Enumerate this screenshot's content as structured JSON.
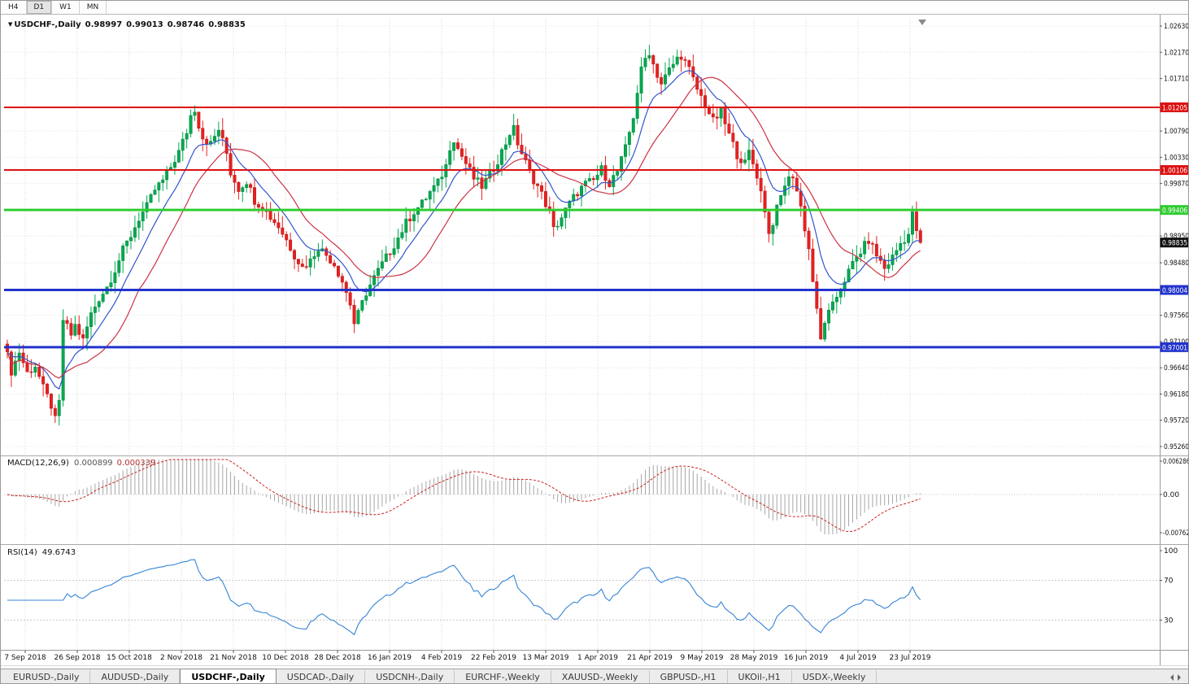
{
  "toolbar": {
    "timeframes": [
      {
        "label": "H4",
        "active": false
      },
      {
        "label": "D1",
        "active": true
      },
      {
        "label": "W1",
        "active": false
      },
      {
        "label": "MN",
        "active": false
      }
    ]
  },
  "chart": {
    "collapse_icon": "▼",
    "symbol_period": "USDCHF-,Daily",
    "ohlc": {
      "open": "0.98997",
      "high": "0.99013",
      "low": "0.98746",
      "close": "0.98835"
    },
    "price_axis": {
      "max": 1.0263,
      "min": 0.9526,
      "labels": [
        "1.02630",
        "1.02170",
        "1.01710",
        "1.00790",
        "1.00330",
        "0.99870",
        "0.98950",
        "0.98480",
        "0.97560",
        "0.97100",
        "0.96640",
        "0.96180",
        "0.95720",
        "0.95260"
      ]
    },
    "hlines": [
      {
        "value": 1.01205,
        "label": "1.01205",
        "color": "#dd1111",
        "width": 2
      },
      {
        "value": 1.00106,
        "label": "1.00106",
        "color": "#dd1111",
        "width": 2
      },
      {
        "value": 0.99406,
        "label": "0.99406",
        "color": "#2fcc2f",
        "width": 3
      },
      {
        "value": 0.98004,
        "label": "0.98004",
        "color": "#2233cc",
        "width": 3
      },
      {
        "value": 0.97001,
        "label": "0.97001",
        "color": "#2233cc",
        "width": 3
      }
    ],
    "current_price": {
      "value": 0.98835,
      "label": "0.98835",
      "bg": "#111111"
    },
    "date_labels": [
      "7 Sep 2018",
      "26 Sep 2018",
      "15 Oct 2018",
      "2 Nov 2018",
      "21 Nov 2018",
      "10 Dec 2018",
      "28 Dec 2018",
      "16 Jan 2019",
      "4 Feb 2019",
      "22 Feb 2019",
      "13 Mar 2019",
      "1 Apr 2019",
      "21 Apr 2019",
      "9 May 2019",
      "28 May 2019",
      "16 Jun 2019",
      "4 Jul 2019",
      "23 Jul 2019"
    ],
    "candle_count": 230,
    "colors": {
      "up": "#00a94f",
      "up_border": "#00843c",
      "down": "#e82020",
      "down_border": "#b81212",
      "ma_fast": "#3355cc",
      "ma_slow": "#cc3344",
      "grid_v": "#d6d6d6",
      "grid_h": "#e4e4e4"
    }
  },
  "chart_data": {
    "type": "candlestick",
    "symbol": "USDCHF-",
    "timeframe": "Daily",
    "visible_range": {
      "price_min": 0.9526,
      "price_max": 1.0263,
      "date_start": "7 Sep 2018",
      "date_end": "23 Jul 2019"
    },
    "ohlc_last": {
      "open": 0.98997,
      "high": 0.99013,
      "low": 0.98746,
      "close": 0.98835
    },
    "levels": [
      1.01205,
      1.00106,
      0.99406,
      0.98004,
      0.97001
    ],
    "price_path_anchors": [
      [
        0,
        0.9685
      ],
      [
        1,
        0.9658
      ],
      [
        3,
        0.9692
      ],
      [
        5,
        0.9655
      ],
      [
        7,
        0.9668
      ],
      [
        9,
        0.9628
      ],
      [
        11,
        0.9598
      ],
      [
        12,
        0.9572
      ],
      [
        13,
        0.9602
      ],
      [
        14,
        0.9748
      ],
      [
        16,
        0.9722
      ],
      [
        17,
        0.9738
      ],
      [
        19,
        0.9712
      ],
      [
        21,
        0.9758
      ],
      [
        23,
        0.9786
      ],
      [
        25,
        0.9806
      ],
      [
        27,
        0.9836
      ],
      [
        29,
        0.987
      ],
      [
        31,
        0.9896
      ],
      [
        33,
        0.9926
      ],
      [
        35,
        0.9946
      ],
      [
        37,
        0.9976
      ],
      [
        39,
        0.9992
      ],
      [
        41,
        1.0016
      ],
      [
        43,
        1.0042
      ],
      [
        45,
        1.0078
      ],
      [
        46,
        1.0106
      ],
      [
        47,
        1.0118
      ],
      [
        48,
        1.009
      ],
      [
        49,
        1.0068
      ],
      [
        51,
        1.0056
      ],
      [
        53,
        1.0082
      ],
      [
        55,
        1.004
      ],
      [
        56,
        1.0006
      ],
      [
        58,
        0.9978
      ],
      [
        60,
        0.9992
      ],
      [
        62,
        0.9958
      ],
      [
        64,
        0.9946
      ],
      [
        66,
        0.9928
      ],
      [
        68,
        0.9912
      ],
      [
        70,
        0.9888
      ],
      [
        72,
        0.9862
      ],
      [
        74,
        0.984
      ],
      [
        76,
        0.9852
      ],
      [
        78,
        0.9876
      ],
      [
        80,
        0.9862
      ],
      [
        82,
        0.9846
      ],
      [
        84,
        0.9816
      ],
      [
        86,
        0.9776
      ],
      [
        87,
        0.9742
      ],
      [
        88,
        0.9758
      ],
      [
        90,
        0.9796
      ],
      [
        92,
        0.9822
      ],
      [
        94,
        0.9846
      ],
      [
        96,
        0.9868
      ],
      [
        98,
        0.9892
      ],
      [
        100,
        0.9918
      ],
      [
        102,
        0.9938
      ],
      [
        104,
        0.9952
      ],
      [
        106,
        0.9972
      ],
      [
        108,
        0.9988
      ],
      [
        110,
        1.0018
      ],
      [
        111,
        1.0052
      ],
      [
        112,
        1.0066
      ],
      [
        113,
        1.0048
      ],
      [
        115,
        1.0022
      ],
      [
        117,
        0.9996
      ],
      [
        119,
        0.9982
      ],
      [
        121,
        1.0002
      ],
      [
        123,
        1.0028
      ],
      [
        125,
        1.0058
      ],
      [
        126,
        1.0076
      ],
      [
        127,
        1.0082
      ],
      [
        128,
        1.0058
      ],
      [
        129,
        1.004
      ],
      [
        131,
        1.0006
      ],
      [
        133,
        0.9982
      ],
      [
        134,
        0.9968
      ],
      [
        136,
        0.9936
      ],
      [
        137,
        0.9906
      ],
      [
        139,
        0.9928
      ],
      [
        141,
        0.9952
      ],
      [
        143,
        0.9972
      ],
      [
        145,
        0.9986
      ],
      [
        147,
        0.9992
      ],
      [
        149,
        1.0012
      ],
      [
        151,
        0.9988
      ],
      [
        153,
        1.0008
      ],
      [
        155,
        1.0048
      ],
      [
        157,
        1.0105
      ],
      [
        158,
        1.0148
      ],
      [
        159,
        1.0185
      ],
      [
        160,
        1.0206
      ],
      [
        161,
        1.0218
      ],
      [
        162,
        1.0196
      ],
      [
        163,
        1.0178
      ],
      [
        164,
        1.0162
      ],
      [
        166,
        1.0186
      ],
      [
        168,
        1.0206
      ],
      [
        169,
        1.0212
      ],
      [
        171,
        1.0186
      ],
      [
        173,
        1.0152
      ],
      [
        175,
        1.0126
      ],
      [
        177,
        1.0096
      ],
      [
        179,
        1.0112
      ],
      [
        181,
        1.0072
      ],
      [
        183,
        1.0038
      ],
      [
        185,
        1.0022
      ],
      [
        186,
        1.0042
      ],
      [
        188,
        1.0002
      ],
      [
        190,
        0.9942
      ],
      [
        191,
        0.9898
      ],
      [
        193,
        0.9942
      ],
      [
        195,
        0.9986
      ],
      [
        197,
        1.0002
      ],
      [
        199,
        0.9946
      ],
      [
        201,
        0.9872
      ],
      [
        203,
        0.9762
      ],
      [
        204,
        0.9712
      ],
      [
        205,
        0.9746
      ],
      [
        207,
        0.9772
      ],
      [
        209,
        0.9806
      ],
      [
        211,
        0.9832
      ],
      [
        212,
        0.9846
      ],
      [
        214,
        0.9868
      ],
      [
        216,
        0.9888
      ],
      [
        218,
        0.9862
      ],
      [
        220,
        0.9838
      ],
      [
        222,
        0.9858
      ],
      [
        224,
        0.9882
      ],
      [
        226,
        0.9898
      ],
      [
        227,
        0.9932
      ],
      [
        228,
        0.9906
      ],
      [
        229,
        0.98835
      ]
    ],
    "indicators": [
      {
        "name": "MACD(12,26,9)",
        "values": [
          0.000899,
          0.000339
        ]
      },
      {
        "name": "RSI(14)",
        "values": [
          49.6743
        ]
      }
    ]
  },
  "macd": {
    "name": "MACD(12,26,9)",
    "value_main": "0.000899",
    "value_signal": "0.000339",
    "scale": [
      "0.006286",
      "0.00",
      "-0.00762"
    ],
    "histogram_color": "#a6a6a6",
    "signal_color": "#cc2222"
  },
  "rsi": {
    "name": "RSI(14)",
    "value": "49.6743",
    "scale": [
      "100",
      "70",
      "30"
    ],
    "levels": [
      70,
      30
    ],
    "line_color": "#3584d6"
  },
  "tabs": [
    {
      "label": "EURUSD-,Daily",
      "active": false
    },
    {
      "label": "AUDUSD-,Daily",
      "active": false
    },
    {
      "label": "USDCHF-,Daily",
      "active": true
    },
    {
      "label": "USDCAD-,Daily",
      "active": false
    },
    {
      "label": "USDCNH-,Daily",
      "active": false
    },
    {
      "label": "EURCHF-,Weekly",
      "active": false
    },
    {
      "label": "XAUUSD-,Weekly",
      "active": false
    },
    {
      "label": "GBPUSD-,H1",
      "active": false
    },
    {
      "label": "UKOil-,H1",
      "active": false
    },
    {
      "label": "USDX-,Weekly",
      "active": false
    }
  ]
}
